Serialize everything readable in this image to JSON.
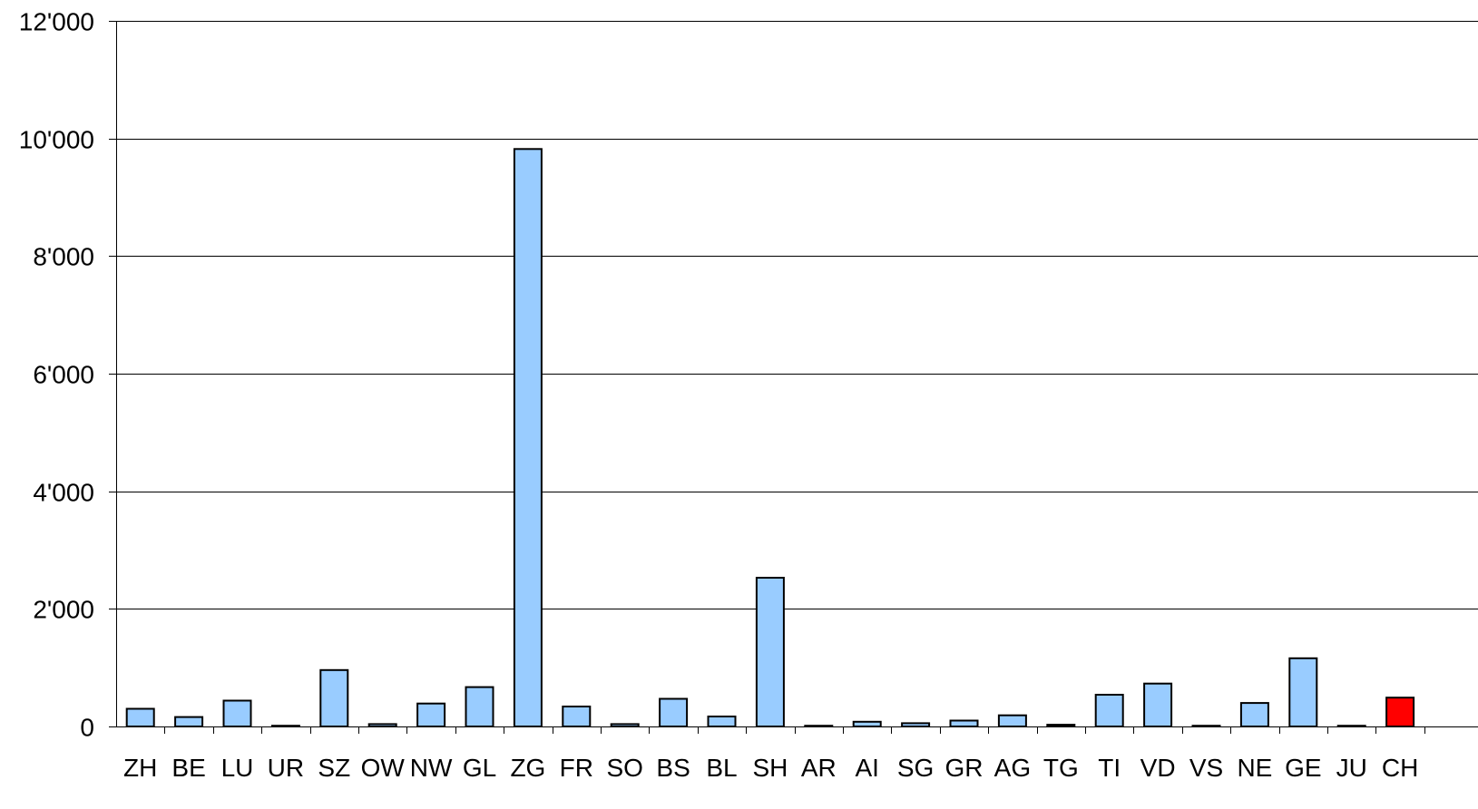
{
  "chart_data": {
    "type": "bar",
    "categories": [
      "ZH",
      "BE",
      "LU",
      "UR",
      "SZ",
      "OW",
      "NW",
      "GL",
      "ZG",
      "FR",
      "SO",
      "BS",
      "BL",
      "SH",
      "AR",
      "AI",
      "SG",
      "GR",
      "AG",
      "TG",
      "TI",
      "VD",
      "VS",
      "NE",
      "GE",
      "JU",
      "CH"
    ],
    "values": [
      300,
      160,
      440,
      10,
      960,
      40,
      390,
      670,
      9820,
      340,
      40,
      470,
      170,
      2530,
      5,
      80,
      55,
      100,
      190,
      30,
      540,
      730,
      5,
      400,
      1160,
      5,
      490
    ],
    "highlight_category": "CH",
    "ylim": [
      0,
      12000
    ],
    "yticks": [
      0,
      2000,
      4000,
      6000,
      8000,
      10000,
      12000
    ],
    "ytick_labels": [
      "0",
      "2'000",
      "4'000",
      "6'000",
      "8'000",
      "10'000",
      "12'000"
    ],
    "grid": true,
    "colors": {
      "bar": "#99ccff",
      "highlight": "#ff0000",
      "outline": "#000000",
      "grid": "#000000"
    },
    "title": "",
    "xlabel": "",
    "ylabel": ""
  }
}
